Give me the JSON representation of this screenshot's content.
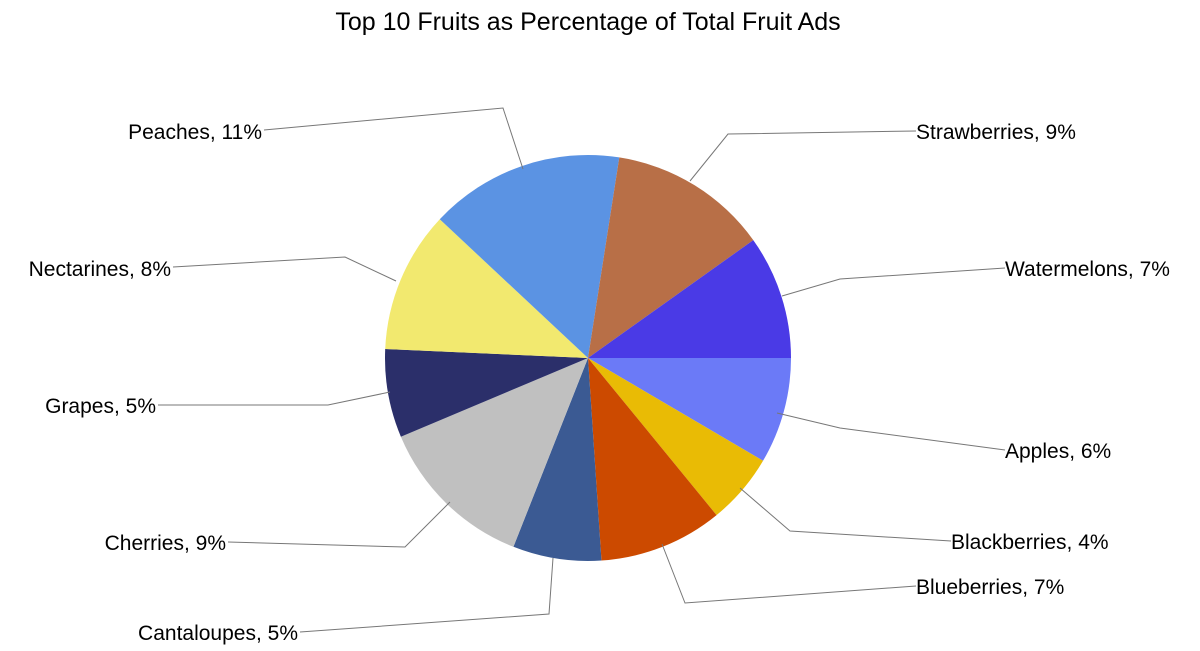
{
  "chart_data": {
    "type": "pie",
    "title": "Top 10 Fruits as Percentage of Total Fruit Ads",
    "slices": [
      {
        "label": "Strawberries",
        "value": 9,
        "value_label": "9%",
        "color": "#b86f47"
      },
      {
        "label": "Watermelons",
        "value": 7,
        "value_label": "7%",
        "color": "#4a3ae6"
      },
      {
        "label": "Apples",
        "value": 6,
        "value_label": "6%",
        "color": "#6b7af7"
      },
      {
        "label": "Blackberries",
        "value": 4,
        "value_label": "4%",
        "color": "#e9bb05"
      },
      {
        "label": "Blueberries",
        "value": 7,
        "value_label": "7%",
        "color": "#cc4a00"
      },
      {
        "label": "Cantaloupes",
        "value": 5,
        "value_label": "5%",
        "color": "#3b5a93"
      },
      {
        "label": "Cherries",
        "value": 9,
        "value_label": "9%",
        "color": "#c0c0c0"
      },
      {
        "label": "Grapes",
        "value": 5,
        "value_label": "5%",
        "color": "#2b2f6a"
      },
      {
        "label": "Nectarines",
        "value": 8,
        "value_label": "8%",
        "color": "#f2e96f"
      },
      {
        "label": "Peaches",
        "value": 11,
        "value_label": "11%",
        "color": "#5b93e3"
      }
    ]
  }
}
